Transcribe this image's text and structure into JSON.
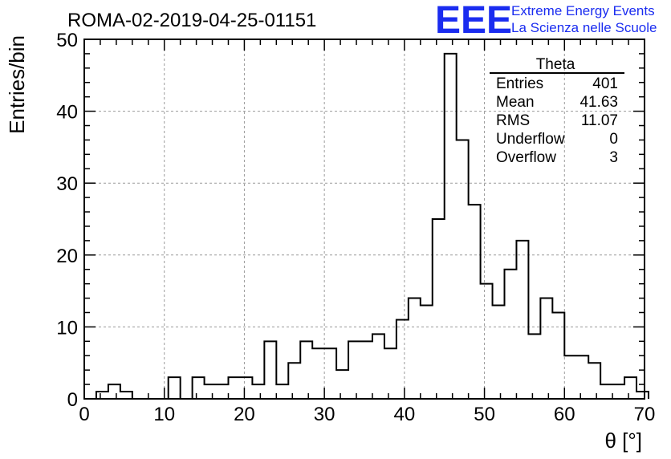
{
  "title": "ROMA-02-2019-04-25-01151",
  "logo": {
    "mark": "EEE",
    "line1": "Extreme Energy Events",
    "line2": "La Scienza nelle Scuole",
    "color": "#1a2cf0"
  },
  "stats": {
    "name": "Theta",
    "rows": [
      {
        "label": "Entries",
        "value": "401"
      },
      {
        "label": "Mean",
        "value": "41.63"
      },
      {
        "label": "RMS",
        "value": "11.07"
      },
      {
        "label": "Underflow",
        "value": "0"
      },
      {
        "label": "Overflow",
        "value": "3"
      }
    ]
  },
  "chart_data": {
    "type": "bar",
    "histogram": true,
    "xlabel": "θ [°]",
    "ylabel": "Entries/bin",
    "xlim": [
      0,
      70
    ],
    "ylim": [
      0,
      50
    ],
    "xticks": [
      0,
      10,
      20,
      30,
      40,
      50,
      60,
      70
    ],
    "yticks": [
      0,
      10,
      20,
      30,
      40,
      50
    ],
    "grid": true,
    "bin_width": 1.5,
    "bin_start": 0,
    "values": [
      0,
      1,
      2,
      1,
      0,
      0,
      0,
      3,
      0,
      3,
      2,
      2,
      3,
      3,
      2,
      8,
      2,
      5,
      8,
      7,
      7,
      4,
      8,
      8,
      9,
      7,
      11,
      14,
      13,
      25,
      48,
      36,
      27,
      16,
      13,
      18,
      22,
      9,
      14,
      12,
      6,
      6,
      5,
      2,
      2,
      3,
      1
    ]
  }
}
